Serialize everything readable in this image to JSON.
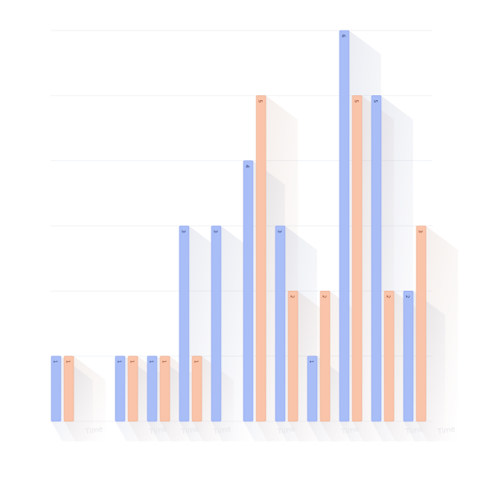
{
  "chart_data": {
    "type": "bar",
    "categories": [
      "",
      "",
      "",
      "",
      "",
      "",
      "",
      "",
      "",
      "",
      "",
      "",
      ""
    ],
    "x_tick_labels": [
      "",
      "Time",
      "",
      "Time",
      "Time",
      "Time",
      "",
      "Time",
      "",
      "Time",
      "",
      "Time",
      "Time"
    ],
    "series": [
      {
        "name": "",
        "color": "#a9bdf7",
        "values": [
          1,
          0,
          1,
          1,
          3,
          3,
          4,
          3,
          1,
          6,
          5,
          2,
          0
        ]
      },
      {
        "name": "",
        "color": "#f9c4a9",
        "values": [
          1,
          0,
          1,
          1,
          1,
          0,
          5,
          2,
          2,
          5,
          2,
          3,
          0
        ]
      }
    ],
    "ylim": [
      0,
      6
    ],
    "title": "",
    "xlabel": "",
    "ylabel": "",
    "grid": true,
    "legend": "none",
    "data_labels": true
  }
}
